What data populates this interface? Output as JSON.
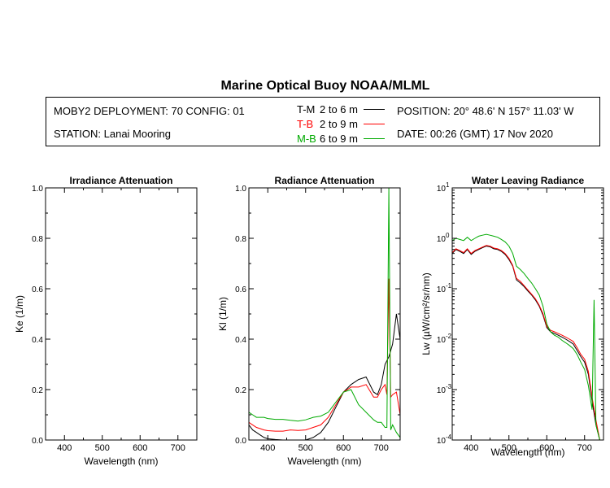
{
  "title": "Marine Optical Buoy NOAA/MLML",
  "info": {
    "deployment": "MOBY2 DEPLOYMENT: 70 CONFIG: 01",
    "station": "STATION: Lanai Mooring",
    "position": "POSITION: 20° 48.6' N   157° 11.03' W",
    "date": "DATE: 00:26 (GMT) 17 Nov 2020"
  },
  "legend": [
    {
      "key": "T-M",
      "range": "2 to 6  m",
      "color": "#000000"
    },
    {
      "key": "T-B",
      "range": "2 to 9  m",
      "color": "#ff0000"
    },
    {
      "key": "M-B",
      "range": "6 to 9  m",
      "color": "#00aa00"
    }
  ],
  "chart_data": [
    {
      "type": "line",
      "title": "Irradiance Attenuation",
      "xlabel": "Wavelength (nm)",
      "ylabel": "Ke  (1/m)",
      "xlim": [
        350,
        750
      ],
      "ylim": [
        0,
        1.0
      ],
      "xticks": [
        "400",
        "500",
        "600",
        "700"
      ],
      "yticks": [
        "0.0",
        "0.2",
        "0.4",
        "0.6",
        "0.8",
        "1.0"
      ],
      "series": []
    },
    {
      "type": "line",
      "title": "Radiance Attenuation",
      "xlabel": "Wavelength (nm)",
      "ylabel": "Kl  (1/m)",
      "xlim": [
        350,
        750
      ],
      "ylim": [
        0,
        1.0
      ],
      "xticks": [
        "400",
        "500",
        "600",
        "700"
      ],
      "yticks": [
        "0.0",
        "0.2",
        "0.4",
        "0.6",
        "0.8",
        "1.0"
      ],
      "series": [
        {
          "name": "T-M",
          "color": "#000000",
          "x": [
            350,
            360,
            370,
            380,
            390,
            400,
            420,
            440,
            460,
            480,
            500,
            520,
            540,
            560,
            580,
            600,
            620,
            640,
            660,
            680,
            690,
            700,
            710,
            720,
            730,
            740,
            750
          ],
          "y": [
            0.06,
            0.04,
            0.03,
            0.02,
            0.01,
            0.005,
            0.002,
            0.0,
            0.0,
            0.0,
            0.0,
            0.01,
            0.03,
            0.07,
            0.13,
            0.19,
            0.22,
            0.24,
            0.25,
            0.19,
            0.18,
            0.22,
            0.3,
            0.33,
            0.38,
            0.5,
            0.4
          ]
        },
        {
          "name": "T-B",
          "color": "#ff0000",
          "x": [
            350,
            360,
            370,
            380,
            390,
            400,
            420,
            440,
            460,
            480,
            500,
            520,
            540,
            560,
            580,
            600,
            620,
            640,
            660,
            680,
            690,
            700,
            710,
            715,
            720,
            725,
            730,
            740,
            750
          ],
          "y": [
            0.07,
            0.06,
            0.05,
            0.045,
            0.04,
            0.037,
            0.035,
            0.035,
            0.04,
            0.038,
            0.04,
            0.05,
            0.06,
            0.09,
            0.14,
            0.19,
            0.21,
            0.21,
            0.22,
            0.17,
            0.17,
            0.2,
            0.22,
            0.18,
            0.64,
            0.17,
            0.18,
            0.19,
            0.1
          ]
        },
        {
          "name": "M-B",
          "color": "#00aa00",
          "x": [
            350,
            360,
            370,
            380,
            390,
            400,
            420,
            440,
            460,
            480,
            500,
            520,
            540,
            560,
            580,
            600,
            620,
            640,
            660,
            680,
            690,
            700,
            710,
            715,
            720,
            725,
            730,
            740,
            750
          ],
          "y": [
            0.11,
            0.1,
            0.09,
            0.09,
            0.09,
            0.085,
            0.082,
            0.082,
            0.078,
            0.075,
            0.08,
            0.09,
            0.095,
            0.11,
            0.15,
            0.19,
            0.2,
            0.14,
            0.11,
            0.08,
            0.07,
            0.07,
            0.05,
            0.05,
            1.0,
            0.04,
            0.06,
            0.03,
            0.01
          ]
        }
      ]
    },
    {
      "type": "line",
      "title": "Water Leaving Radiance",
      "xlabel": "Wavelength (nm)",
      "ylabel": "Lw  (µW/cm²/sr/nm)",
      "xlim": [
        350,
        750
      ],
      "ylim": [
        0.0001,
        10
      ],
      "yscale": "log",
      "xticks": [
        "400",
        "500",
        "600",
        "700"
      ],
      "yticks": [
        {
          "base": "10",
          "exp": "1"
        },
        {
          "base": "10",
          "exp": "0"
        },
        {
          "base": "10",
          "exp": "-1"
        },
        {
          "base": "10",
          "exp": "-2"
        },
        {
          "base": "10",
          "exp": "-3"
        },
        {
          "base": "10",
          "exp": "-4"
        }
      ],
      "series": [
        {
          "name": "T-M",
          "color": "#000000",
          "x": [
            350,
            360,
            370,
            380,
            390,
            400,
            410,
            420,
            430,
            440,
            450,
            460,
            470,
            480,
            490,
            500,
            510,
            520,
            530,
            540,
            550,
            560,
            570,
            580,
            590,
            600,
            610,
            620,
            630,
            640,
            650,
            660,
            670,
            680,
            690,
            700,
            710,
            720,
            730,
            740,
            750
          ],
          "y": [
            0.5,
            0.6,
            0.55,
            0.5,
            0.6,
            0.48,
            0.55,
            0.6,
            0.65,
            0.7,
            0.68,
            0.62,
            0.6,
            0.55,
            0.48,
            0.38,
            0.28,
            0.15,
            0.13,
            0.11,
            0.09,
            0.075,
            0.06,
            0.045,
            0.03,
            0.017,
            0.014,
            0.013,
            0.012,
            0.011,
            0.01,
            0.009,
            0.008,
            0.006,
            0.0045,
            0.0035,
            0.002,
            0.0006,
            0.0002,
            0.0001,
            0.0001
          ]
        },
        {
          "name": "T-B",
          "color": "#ff0000",
          "x": [
            350,
            360,
            370,
            380,
            390,
            400,
            410,
            420,
            430,
            440,
            450,
            460,
            470,
            480,
            490,
            500,
            510,
            520,
            530,
            540,
            550,
            560,
            570,
            580,
            590,
            600,
            610,
            620,
            630,
            640,
            650,
            660,
            670,
            680,
            690,
            700,
            710,
            720,
            730,
            740,
            750
          ],
          "y": [
            0.52,
            0.62,
            0.57,
            0.52,
            0.62,
            0.5,
            0.57,
            0.62,
            0.67,
            0.72,
            0.7,
            0.64,
            0.62,
            0.57,
            0.5,
            0.4,
            0.29,
            0.16,
            0.14,
            0.115,
            0.095,
            0.078,
            0.063,
            0.047,
            0.032,
            0.018,
            0.015,
            0.014,
            0.013,
            0.012,
            0.011,
            0.01,
            0.009,
            0.0068,
            0.005,
            0.004,
            0.0023,
            0.0007,
            0.00025,
            0.0001,
            0.0001
          ]
        },
        {
          "name": "M-B",
          "color": "#00aa00",
          "x": [
            350,
            360,
            370,
            380,
            390,
            400,
            410,
            420,
            430,
            440,
            450,
            460,
            470,
            480,
            490,
            500,
            510,
            520,
            530,
            540,
            550,
            560,
            570,
            580,
            590,
            600,
            610,
            620,
            630,
            640,
            650,
            660,
            670,
            680,
            690,
            700,
            710,
            720,
            725,
            730,
            740,
            750
          ],
          "y": [
            0.9,
            1.0,
            0.95,
            0.9,
            1.05,
            0.9,
            1.0,
            1.1,
            1.15,
            1.2,
            1.15,
            1.1,
            1.05,
            0.95,
            0.85,
            0.7,
            0.5,
            0.28,
            0.24,
            0.2,
            0.16,
            0.13,
            0.1,
            0.075,
            0.045,
            0.02,
            0.014,
            0.012,
            0.011,
            0.0095,
            0.0085,
            0.0075,
            0.0065,
            0.005,
            0.0035,
            0.0025,
            0.0012,
            0.0004,
            0.06,
            0.0002,
            0.0001,
            0.0001
          ]
        }
      ]
    }
  ]
}
